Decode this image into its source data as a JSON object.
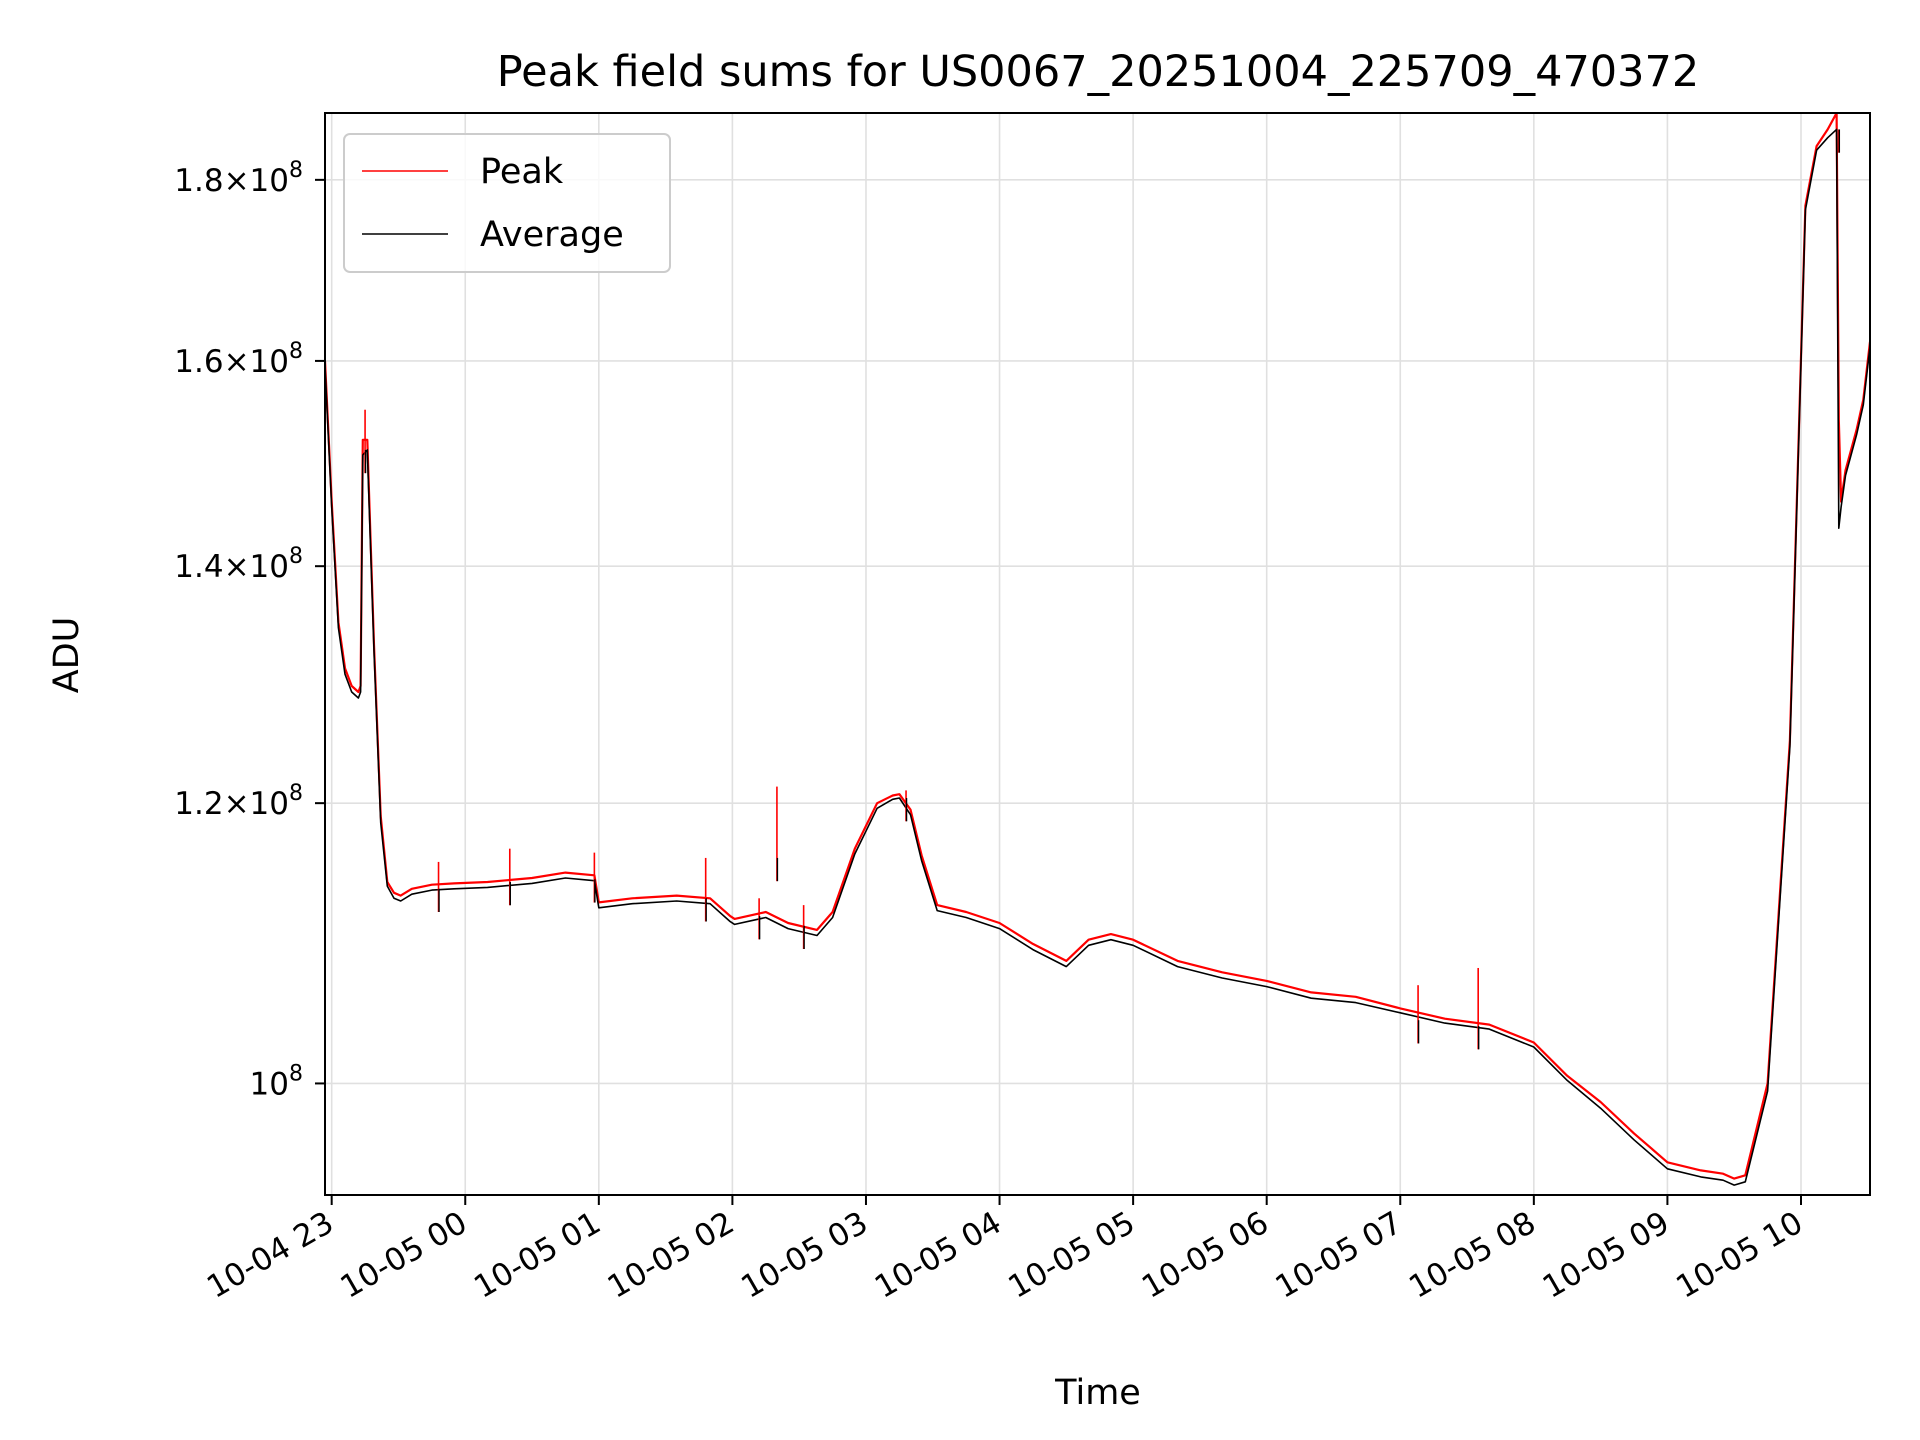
{
  "chart_data": {
    "type": "line",
    "title": "Peak field sums for US0067_20251004_225709_470372",
    "xlabel": "Time",
    "ylabel": "ADU",
    "yscale": "log",
    "grid": true,
    "legend_position": "top-left",
    "xlim": [
      "2025-10-04 22:57",
      "2025-10-05 10:31"
    ],
    "ylim": [
      93000000,
      188000000
    ],
    "x_ticks": [
      {
        "value": "2025-10-04 23:00",
        "label": "10-04 23"
      },
      {
        "value": "2025-10-05 00:00",
        "label": "10-05 00"
      },
      {
        "value": "2025-10-05 01:00",
        "label": "10-05 01"
      },
      {
        "value": "2025-10-05 02:00",
        "label": "10-05 02"
      },
      {
        "value": "2025-10-05 03:00",
        "label": "10-05 03"
      },
      {
        "value": "2025-10-05 04:00",
        "label": "10-05 04"
      },
      {
        "value": "2025-10-05 05:00",
        "label": "10-05 05"
      },
      {
        "value": "2025-10-05 06:00",
        "label": "10-05 06"
      },
      {
        "value": "2025-10-05 07:00",
        "label": "10-05 07"
      },
      {
        "value": "2025-10-05 08:00",
        "label": "10-05 08"
      },
      {
        "value": "2025-10-05 09:00",
        "label": "10-05 09"
      },
      {
        "value": "2025-10-05 10:00",
        "label": "10-05 10"
      }
    ],
    "y_ticks": [
      {
        "value": 100000000,
        "mantissa": "",
        "exponent": "8"
      },
      {
        "value": 120000000,
        "mantissa": "1.2",
        "exponent": "8"
      },
      {
        "value": 140000000,
        "mantissa": "1.4",
        "exponent": "8"
      },
      {
        "value": 160000000,
        "mantissa": "1.6",
        "exponent": "8"
      },
      {
        "value": 180000000,
        "mantissa": "1.8",
        "exponent": "8"
      }
    ],
    "legend": [
      {
        "name": "Peak",
        "color": "#ff0000"
      },
      {
        "name": "Average",
        "color": "#000000"
      }
    ],
    "series": [
      {
        "name": "Peak",
        "color": "#ff0000",
        "x": [
          "2025-10-04 22:57",
          "2025-10-04 23:00",
          "2025-10-04 23:03",
          "2025-10-04 23:06",
          "2025-10-04 23:09",
          "2025-10-04 23:12",
          "2025-10-04 23:13",
          "2025-10-04 23:14",
          "2025-10-04 23:16",
          "2025-10-04 23:19",
          "2025-10-04 23:22",
          "2025-10-04 23:25",
          "2025-10-04 23:28",
          "2025-10-04 23:31",
          "2025-10-04 23:36",
          "2025-10-04 23:45",
          "2025-10-04 23:55",
          "2025-10-05 00:10",
          "2025-10-05 00:30",
          "2025-10-05 00:45",
          "2025-10-05 00:58",
          "2025-10-05 01:00",
          "2025-10-05 01:15",
          "2025-10-05 01:35",
          "2025-10-05 01:50",
          "2025-10-05 01:59",
          "2025-10-05 02:01",
          "2025-10-05 02:15",
          "2025-10-05 02:25",
          "2025-10-05 02:38",
          "2025-10-05 02:45",
          "2025-10-05 02:55",
          "2025-10-05 03:05",
          "2025-10-05 03:12",
          "2025-10-05 03:15",
          "2025-10-05 03:20",
          "2025-10-05 03:25",
          "2025-10-05 03:32",
          "2025-10-05 03:45",
          "2025-10-05 04:00",
          "2025-10-05 04:15",
          "2025-10-05 04:30",
          "2025-10-05 04:40",
          "2025-10-05 04:50",
          "2025-10-05 05:00",
          "2025-10-05 05:20",
          "2025-10-05 05:40",
          "2025-10-05 06:00",
          "2025-10-05 06:20",
          "2025-10-05 06:40",
          "2025-10-05 07:00",
          "2025-10-05 07:20",
          "2025-10-05 07:40",
          "2025-10-05 08:00",
          "2025-10-05 08:15",
          "2025-10-05 08:30",
          "2025-10-05 08:45",
          "2025-10-05 09:00",
          "2025-10-05 09:15",
          "2025-10-05 09:25",
          "2025-10-05 09:30",
          "2025-10-05 09:35",
          "2025-10-05 09:45",
          "2025-10-05 09:55",
          "2025-10-05 10:02",
          "2025-10-05 10:07",
          "2025-10-05 10:12",
          "2025-10-05 10:16",
          "2025-10-05 10:17",
          "2025-10-05 10:18",
          "2025-10-05 10:20",
          "2025-10-05 10:25",
          "2025-10-05 10:28",
          "2025-10-05 10:31"
        ],
        "y": [
          160000000,
          146000000,
          135000000,
          131000000,
          129500000,
          129000000,
          129500000,
          152000000,
          152000000,
          133000000,
          119000000,
          114000000,
          113200000,
          113000000,
          113500000,
          113800000,
          113900000,
          114000000,
          114300000,
          114700000,
          114500000,
          112500000,
          112800000,
          113000000,
          112800000,
          111500000,
          111300000,
          111800000,
          111000000,
          110500000,
          111800000,
          116500000,
          120000000,
          120600000,
          120700000,
          119500000,
          116000000,
          112300000,
          111800000,
          111000000,
          109500000,
          108300000,
          109800000,
          110200000,
          109800000,
          108300000,
          107500000,
          106900000,
          106100000,
          105800000,
          105000000,
          104300000,
          103900000,
          102700000,
          100500000,
          98800000,
          96800000,
          95000000,
          94500000,
          94300000,
          94000000,
          94200000,
          100000000,
          125000000,
          177000000,
          184000000,
          186000000,
          188000000,
          154000000,
          146000000,
          149000000,
          153000000,
          156000000,
          162000000
        ]
      },
      {
        "name": "Average",
        "color": "#000000",
        "x": [
          "2025-10-04 22:57",
          "2025-10-04 23:00",
          "2025-10-04 23:03",
          "2025-10-04 23:06",
          "2025-10-04 23:09",
          "2025-10-04 23:12",
          "2025-10-04 23:13",
          "2025-10-04 23:14",
          "2025-10-04 23:16",
          "2025-10-04 23:19",
          "2025-10-04 23:22",
          "2025-10-04 23:25",
          "2025-10-04 23:28",
          "2025-10-04 23:31",
          "2025-10-04 23:36",
          "2025-10-04 23:45",
          "2025-10-04 23:55",
          "2025-10-05 00:10",
          "2025-10-05 00:30",
          "2025-10-05 00:45",
          "2025-10-05 00:58",
          "2025-10-05 01:00",
          "2025-10-05 01:15",
          "2025-10-05 01:35",
          "2025-10-05 01:50",
          "2025-10-05 01:59",
          "2025-10-05 02:01",
          "2025-10-05 02:15",
          "2025-10-05 02:25",
          "2025-10-05 02:38",
          "2025-10-05 02:45",
          "2025-10-05 02:55",
          "2025-10-05 03:05",
          "2025-10-05 03:12",
          "2025-10-05 03:15",
          "2025-10-05 03:20",
          "2025-10-05 03:25",
          "2025-10-05 03:32",
          "2025-10-05 03:45",
          "2025-10-05 04:00",
          "2025-10-05 04:15",
          "2025-10-05 04:30",
          "2025-10-05 04:40",
          "2025-10-05 04:50",
          "2025-10-05 05:00",
          "2025-10-05 05:20",
          "2025-10-05 05:40",
          "2025-10-05 06:00",
          "2025-10-05 06:20",
          "2025-10-05 06:40",
          "2025-10-05 07:00",
          "2025-10-05 07:20",
          "2025-10-05 07:40",
          "2025-10-05 08:00",
          "2025-10-05 08:15",
          "2025-10-05 08:30",
          "2025-10-05 08:45",
          "2025-10-05 09:00",
          "2025-10-05 09:15",
          "2025-10-05 09:25",
          "2025-10-05 09:30",
          "2025-10-05 09:35",
          "2025-10-05 09:45",
          "2025-10-05 09:55",
          "2025-10-05 10:02",
          "2025-10-05 10:07",
          "2025-10-05 10:12",
          "2025-10-05 10:16",
          "2025-10-05 10:17",
          "2025-10-05 10:18",
          "2025-10-05 10:20",
          "2025-10-05 10:25",
          "2025-10-05 10:28",
          "2025-10-05 10:31"
        ],
        "y": [
          159500000,
          145500000,
          134500000,
          130500000,
          129000000,
          128500000,
          129000000,
          150500000,
          151000000,
          132500000,
          118500000,
          113700000,
          112800000,
          112600000,
          113100000,
          113400000,
          113500000,
          113600000,
          113900000,
          114300000,
          114100000,
          112100000,
          112400000,
          112600000,
          112400000,
          111100000,
          110900000,
          111400000,
          110600000,
          110100000,
          111400000,
          116100000,
          119600000,
          120300000,
          120400000,
          119100000,
          115600000,
          111900000,
          111400000,
          110600000,
          109100000,
          107900000,
          109400000,
          109800000,
          109400000,
          107900000,
          107100000,
          106500000,
          105700000,
          105400000,
          104700000,
          104000000,
          103600000,
          102400000,
          100200000,
          98400000,
          96400000,
          94600000,
          94100000,
          93900000,
          93600000,
          93800000,
          99500000,
          124500000,
          176500000,
          183500000,
          185000000,
          186000000,
          143500000,
          145500000,
          148500000,
          152500000,
          155500000,
          161500000
        ]
      }
    ],
    "spikes": [
      {
        "time": "2025-10-04 23:15",
        "peak": 155000000,
        "average": 151000000
      },
      {
        "time": "2025-10-04 23:48",
        "peak": 115500000,
        "average": 113500000
      },
      {
        "time": "2025-10-05 00:20",
        "peak": 116500000,
        "average": 114000000
      },
      {
        "time": "2025-10-05 00:58",
        "peak": 116200000,
        "average": 114200000
      },
      {
        "time": "2025-10-05 01:48",
        "peak": 115800000,
        "average": 112800000
      },
      {
        "time": "2025-10-05 02:12",
        "peak": 112800000,
        "average": 111500000
      },
      {
        "time": "2025-10-05 02:20",
        "peak": 121300000,
        "average": 115800000
      },
      {
        "time": "2025-10-05 02:32",
        "peak": 112300000,
        "average": 110800000
      },
      {
        "time": "2025-10-05 03:18",
        "peak": 121000000,
        "average": 120400000
      },
      {
        "time": "2025-10-05 07:08",
        "peak": 106600000,
        "average": 104200000
      },
      {
        "time": "2025-10-05 07:35",
        "peak": 107800000,
        "average": 103800000
      },
      {
        "time": "2025-10-05 10:17",
        "peak": 186000000,
        "average": 186000000
      }
    ]
  }
}
